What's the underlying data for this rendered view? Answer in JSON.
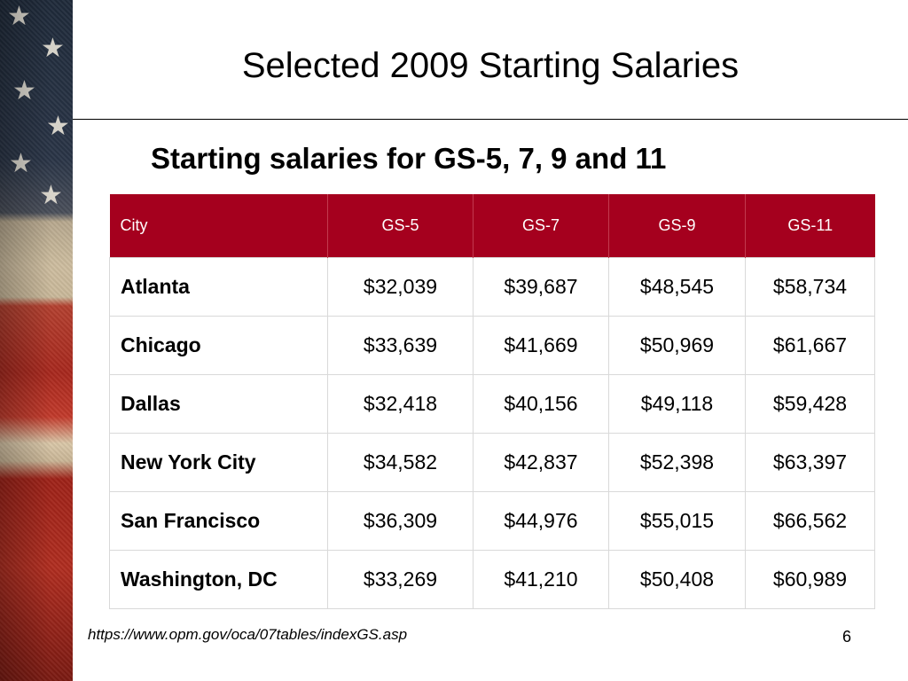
{
  "slide": {
    "title": "Selected 2009 Starting Salaries",
    "subtitle": "Starting salaries for GS-5, 7, 9 and 11",
    "footer_link": "https://www.opm.gov/oca/07tables/indexGS.asp",
    "page_number": "6"
  },
  "table": {
    "header_color": "#a5001e",
    "columns": [
      "City",
      "GS-5",
      "GS-7",
      "GS-9",
      "GS-11"
    ],
    "rows": [
      {
        "city": "Atlanta",
        "values": [
          "$32,039",
          "$39,687",
          "$48,545",
          "$58,734"
        ]
      },
      {
        "city": "Chicago",
        "values": [
          "$33,639",
          "$41,669",
          "$50,969",
          "$61,667"
        ]
      },
      {
        "city": "Dallas",
        "values": [
          "$32,418",
          "$40,156",
          "$49,118",
          "$59,428"
        ]
      },
      {
        "city": "New York City",
        "values": [
          "$34,582",
          "$42,837",
          "$52,398",
          "$63,397"
        ]
      },
      {
        "city": "San Francisco",
        "values": [
          "$36,309",
          "$44,976",
          "$55,015",
          "$66,562"
        ]
      },
      {
        "city": "Washington, DC",
        "values": [
          "$33,269",
          "$41,210",
          "$50,408",
          "$60,989"
        ]
      }
    ]
  },
  "decoration": {
    "left_strip": "american-flag-image"
  }
}
